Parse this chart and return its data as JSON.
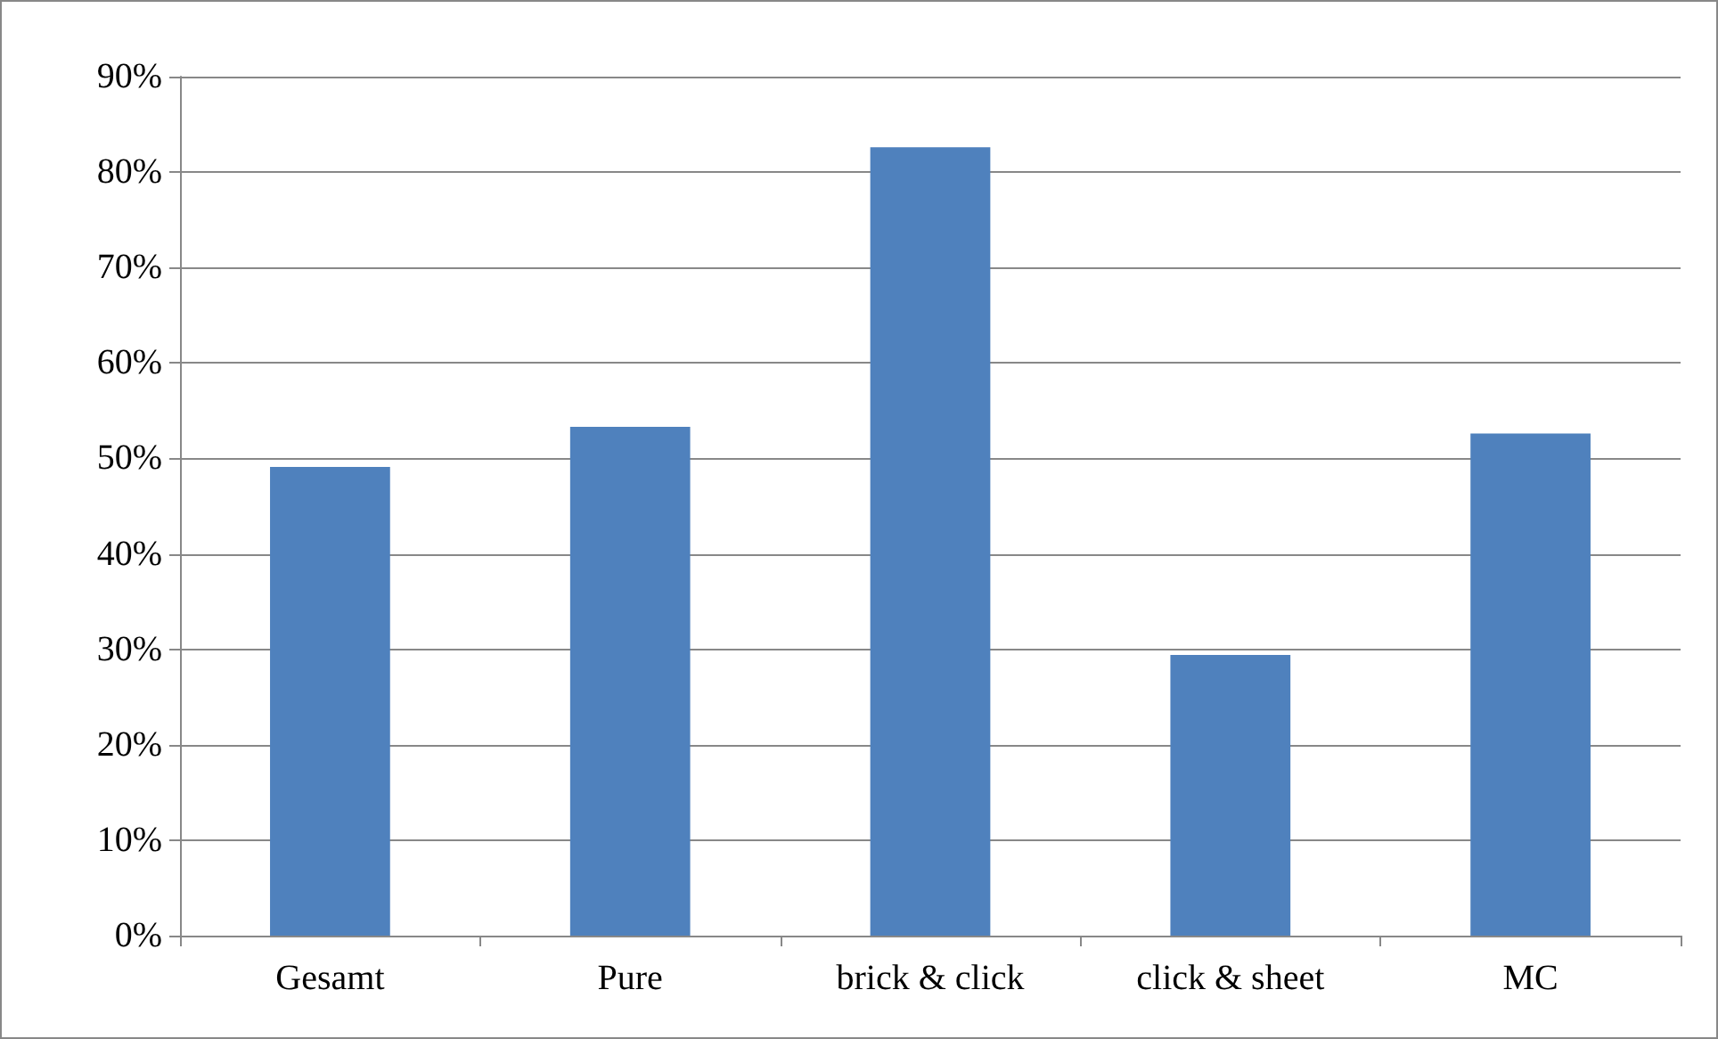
{
  "chart_data": {
    "type": "bar",
    "categories": [
      "Gesamt",
      "Pure",
      "brick & click",
      "click & sheet",
      "MC"
    ],
    "values": [
      49.1,
      53.3,
      82.6,
      29.4,
      52.6
    ],
    "color": "#4f81bd",
    "ylim": [
      0,
      90
    ],
    "yticks": [
      {
        "value": 0,
        "label": "0%"
      },
      {
        "value": 10,
        "label": "10%"
      },
      {
        "value": 20,
        "label": "20%"
      },
      {
        "value": 30,
        "label": "30%"
      },
      {
        "value": 40,
        "label": "40%"
      },
      {
        "value": 50,
        "label": "50%"
      },
      {
        "value": 60,
        "label": "60%"
      },
      {
        "value": 70,
        "label": "70%"
      },
      {
        "value": 80,
        "label": "80%"
      },
      {
        "value": 90,
        "label": "90%"
      }
    ],
    "grid": true
  }
}
